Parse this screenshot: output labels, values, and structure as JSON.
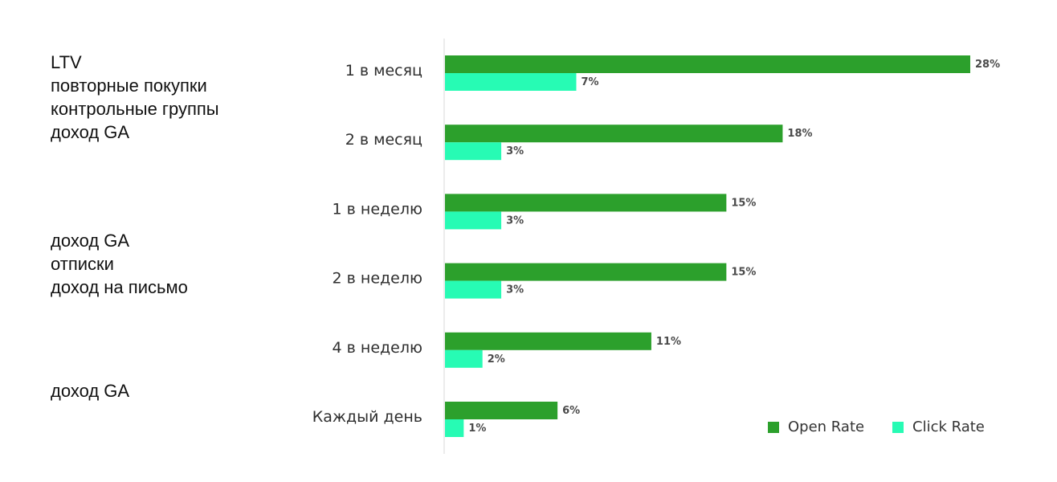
{
  "notes": [
    [
      "LTV",
      "повторные покупки",
      "контрольные группы",
      "доход GA"
    ],
    [
      "доход GA",
      "отписки",
      "доход на письмо"
    ],
    [
      "доход GA"
    ]
  ],
  "chart_data": {
    "type": "bar",
    "orientation": "horizontal",
    "categories": [
      "1 в месяц",
      "2 в месяц",
      "1 в неделю",
      "2 в неделю",
      "4 в неделю",
      "Каждый день"
    ],
    "series": [
      {
        "name": "Open Rate",
        "color": "#2ca02c",
        "values": [
          28,
          18,
          15,
          15,
          11,
          6
        ],
        "labels": [
          "28%",
          "18%",
          "15%",
          "15%",
          "11%",
          "6%"
        ]
      },
      {
        "name": "Click Rate",
        "color": "#27fbb4",
        "values": [
          7,
          3,
          3,
          3,
          2,
          1
        ],
        "labels": [
          "7%",
          "3%",
          "3%",
          "3%",
          "2%",
          "1%"
        ]
      }
    ],
    "xlim": [
      0,
      28
    ],
    "grid": false,
    "legend": "bottom-right"
  }
}
